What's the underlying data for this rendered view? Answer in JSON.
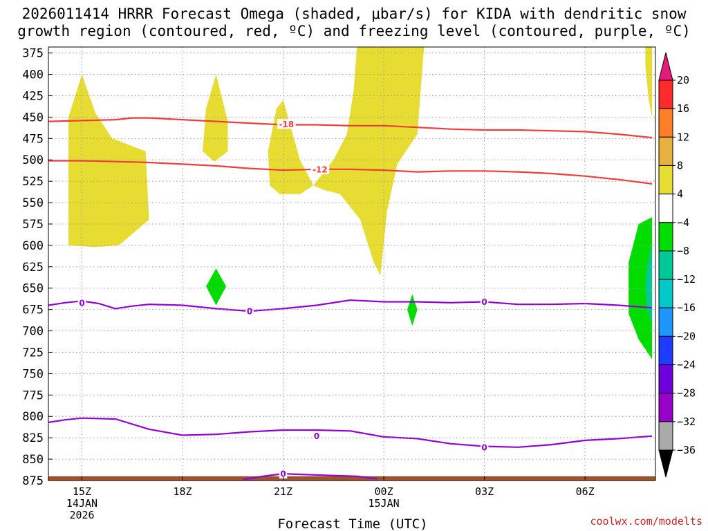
{
  "title": {
    "line1": "2026011414 HRRR Forecast Omega (shaded, μbar/s) for KIDA with dendritic snow",
    "line2": "growth region (contoured, red, ºC) and freezing level (contoured, purple, ºC)"
  },
  "credit": "coolwx.com/modelts",
  "colors": {
    "dgz": "#f03c3c",
    "freezing": "#9400d3",
    "ground": "#a0522d",
    "credit": "#cc2222"
  },
  "chart_data": {
    "type": "time-height",
    "xlabel": "Forecast Time (UTC)",
    "ylabel": "",
    "y_axis": {
      "quantity": "pressure (mb)",
      "inverted": true,
      "ylim": [
        875,
        368
      ],
      "ticks": [
        375,
        400,
        425,
        450,
        475,
        500,
        525,
        550,
        575,
        600,
        625,
        650,
        675,
        700,
        725,
        750,
        775,
        800,
        825,
        850,
        875
      ]
    },
    "x_axis": {
      "units": "hours since 2026-01-14 14Z",
      "xlim": [
        0,
        18.1
      ],
      "ticks": [
        {
          "hour": 1,
          "lines": [
            "15Z",
            "14JAN",
            "2026"
          ]
        },
        {
          "hour": 4,
          "lines": [
            "18Z"
          ]
        },
        {
          "hour": 7,
          "lines": [
            "21Z"
          ]
        },
        {
          "hour": 10,
          "lines": [
            "00Z",
            "15JAN"
          ]
        },
        {
          "hour": 13,
          "lines": [
            "03Z"
          ]
        },
        {
          "hour": 16,
          "lines": [
            "06Z"
          ]
        }
      ]
    },
    "grid": true,
    "colorbar": {
      "labels": [
        "20",
        "16",
        "12",
        "8",
        "4",
        "−4",
        "−8",
        "−12",
        "−16",
        "−20",
        "−24",
        "−28",
        "−32",
        "−36"
      ],
      "bins": [
        {
          "color": "#ff2a2a"
        },
        {
          "color": "#ff7f27"
        },
        {
          "color": "#e6b13c"
        },
        {
          "color": "#e6dc32"
        },
        {
          "color": "#ffffff"
        },
        {
          "color": "#00dc00"
        },
        {
          "color": "#00c896"
        },
        {
          "color": "#00c8c8"
        },
        {
          "color": "#1e96ff"
        },
        {
          "color": "#1e3cff"
        },
        {
          "color": "#6e00dc"
        },
        {
          "color": "#9600c8"
        },
        {
          "color": "#aaaaaa"
        }
      ],
      "over_color": "#e6197d",
      "under_color": "#000000"
    },
    "omega_regions": [
      {
        "class": "4 to 8",
        "color": "#e6dc32",
        "points": [
          [
            0.6,
            600
          ],
          [
            0.6,
            450
          ],
          [
            1.0,
            400
          ],
          [
            1.4,
            445
          ],
          [
            1.9,
            475
          ],
          [
            2.9,
            490
          ],
          [
            3.0,
            570
          ],
          [
            2.1,
            600
          ],
          [
            1.4,
            602
          ]
        ]
      },
      {
        "class": "4 to 8",
        "color": "#e6dc32",
        "points": [
          [
            4.6,
            490
          ],
          [
            4.7,
            440
          ],
          [
            5.0,
            400
          ],
          [
            5.35,
            455
          ],
          [
            5.35,
            490
          ],
          [
            4.95,
            502
          ]
        ]
      },
      {
        "class": "4 to 8",
        "color": "#e6dc32",
        "points": [
          [
            6.6,
            530
          ],
          [
            6.55,
            490
          ],
          [
            6.8,
            440
          ],
          [
            7.0,
            430
          ],
          [
            7.5,
            500
          ],
          [
            7.9,
            530
          ],
          [
            7.5,
            540
          ],
          [
            6.9,
            540
          ]
        ]
      },
      {
        "class": "4 to 8",
        "color": "#e6dc32",
        "points": [
          [
            7.9,
            530
          ],
          [
            8.5,
            500
          ],
          [
            8.9,
            470
          ],
          [
            9.1,
            420
          ],
          [
            9.2,
            368
          ],
          [
            11.2,
            368
          ],
          [
            11.0,
            470
          ],
          [
            10.4,
            505
          ],
          [
            10.1,
            560
          ],
          [
            9.9,
            635
          ],
          [
            9.7,
            620
          ],
          [
            9.3,
            570
          ],
          [
            8.7,
            540
          ],
          [
            8.2,
            535
          ]
        ]
      },
      {
        "class": "4 to 8",
        "color": "#e6dc32",
        "points": [
          [
            17.8,
            368
          ],
          [
            18.0,
            368
          ],
          [
            18.0,
            450
          ],
          [
            17.9,
            430
          ],
          [
            17.8,
            390
          ]
        ]
      },
      {
        "class": "-4 to -8",
        "color": "#00dc00",
        "points": [
          [
            4.7,
            648
          ],
          [
            5.0,
            627
          ],
          [
            5.3,
            648
          ],
          [
            5.0,
            670
          ]
        ]
      },
      {
        "class": "-4 to -8",
        "color": "#00dc00",
        "points": [
          [
            10.7,
            675
          ],
          [
            10.85,
            657
          ],
          [
            11.0,
            675
          ],
          [
            10.85,
            694
          ]
        ]
      },
      {
        "class": "-4 to -8",
        "color": "#00dc00",
        "points": [
          [
            18.0,
            567
          ],
          [
            17.6,
            575
          ],
          [
            17.3,
            620
          ],
          [
            17.3,
            680
          ],
          [
            17.6,
            710
          ],
          [
            18.0,
            733
          ]
        ]
      },
      {
        "class": "-8 to -12",
        "color": "#00c896",
        "points": [
          [
            18.0,
            600
          ],
          [
            17.85,
            625
          ],
          [
            17.8,
            650
          ],
          [
            17.85,
            675
          ],
          [
            18.0,
            690
          ]
        ]
      }
    ],
    "contours": [
      {
        "name": "-18",
        "kind": "dgz",
        "label_at": [
          7.1,
          458
        ],
        "x": [
          0,
          1,
          2,
          2.5,
          3,
          4,
          5,
          6,
          7,
          8,
          9,
          10,
          11,
          12,
          13,
          14,
          15,
          16,
          17,
          18
        ],
        "y": [
          455,
          454,
          453,
          451,
          451,
          453,
          455,
          457,
          459,
          459,
          460,
          460,
          462,
          464,
          465,
          465,
          466,
          467,
          470,
          474
        ]
      },
      {
        "name": "-12",
        "kind": "dgz",
        "label_at": [
          8.1,
          511
        ],
        "x": [
          0,
          1,
          2,
          3,
          4,
          5,
          6,
          7,
          8,
          9,
          10,
          11,
          12,
          13,
          14,
          15,
          16,
          17,
          18
        ],
        "y": [
          501,
          501,
          502,
          503,
          505,
          507,
          510,
          512,
          511,
          511,
          512,
          514,
          513,
          513,
          514,
          516,
          519,
          523,
          528
        ]
      },
      {
        "name": "0",
        "kind": "freezing",
        "label_at": [
          1.0,
          667
        ],
        "x": [
          0,
          0.5,
          1,
          1.5,
          2,
          2.5,
          3,
          4,
          5,
          6,
          7,
          8,
          9,
          10,
          11,
          12,
          13,
          14,
          15,
          16,
          17,
          18
        ],
        "y": [
          670,
          667,
          665,
          668,
          674,
          671,
          669,
          670,
          674,
          677,
          674,
          670,
          664,
          666,
          666,
          667,
          666,
          669,
          669,
          668,
          670,
          673
        ]
      },
      {
        "name": "0",
        "kind": "freezing",
        "label_at": [
          6.0,
          677
        ],
        "hide_line": true,
        "x": [],
        "y": []
      },
      {
        "name": "0",
        "kind": "freezing",
        "label_at": [
          13.0,
          666
        ],
        "hide_line": true,
        "x": [],
        "y": []
      },
      {
        "name": "0",
        "kind": "freezing",
        "label_at": [
          8.0,
          823
        ],
        "x": [
          0,
          0.5,
          1,
          2,
          3,
          4,
          5,
          6,
          7,
          8,
          9,
          10,
          11,
          12,
          13,
          14,
          15,
          16,
          17,
          18
        ],
        "y": [
          807,
          804,
          802,
          803,
          815,
          822,
          821,
          818,
          816,
          816,
          817,
          824,
          826,
          832,
          835,
          836,
          833,
          828,
          826,
          823
        ]
      },
      {
        "name": "0",
        "kind": "freezing",
        "label_at": [
          13.0,
          836
        ],
        "hide_line": true,
        "x": [],
        "y": []
      },
      {
        "name": "0",
        "kind": "freezing",
        "label_at": [
          7.0,
          867
        ],
        "x": [
          5.8,
          6.4,
          7.0,
          7.6,
          8.4,
          9.2,
          9.8
        ],
        "y": [
          874,
          870,
          867,
          868,
          869,
          870,
          873
        ]
      }
    ],
    "ground": {
      "x": [
        0,
        18.1
      ],
      "top": [
        870,
        870
      ]
    }
  }
}
